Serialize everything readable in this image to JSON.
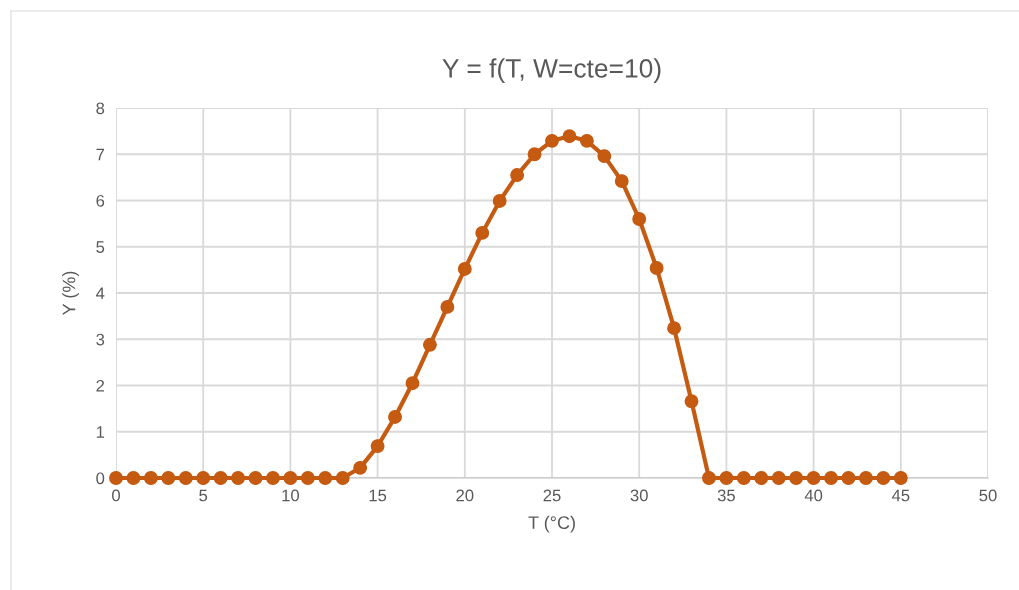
{
  "chart_data": {
    "type": "line",
    "title": "Y = f(T, W=cte=10)",
    "xlabel": "T (°C)",
    "ylabel": "Y (%)",
    "x": [
      0,
      1,
      2,
      3,
      4,
      5,
      6,
      7,
      8,
      9,
      10,
      11,
      12,
      13,
      14,
      15,
      16,
      17,
      18,
      19,
      20,
      21,
      22,
      23,
      24,
      25,
      26,
      27,
      28,
      29,
      30,
      31,
      32,
      33,
      34,
      35,
      36,
      37,
      38,
      39,
      40,
      41,
      42,
      43,
      44,
      45
    ],
    "series": [
      {
        "color": "#c55a11",
        "values": [
          0,
          0,
          0,
          0,
          0,
          0,
          0,
          0,
          0,
          0,
          0,
          0,
          0,
          0,
          0.22,
          0.69,
          1.32,
          2.05,
          2.88,
          3.7,
          4.52,
          5.3,
          5.99,
          6.55,
          7.0,
          7.29,
          7.39,
          7.29,
          6.96,
          6.42,
          5.6,
          4.54,
          3.24,
          1.66,
          0,
          0,
          0,
          0,
          0,
          0,
          0,
          0,
          0,
          0,
          0,
          0
        ]
      }
    ],
    "xlim": [
      0,
      50
    ],
    "xticks": [
      0,
      5,
      10,
      15,
      20,
      25,
      30,
      35,
      40,
      45,
      50
    ],
    "ylim": [
      0,
      8
    ],
    "yticks": [
      0,
      1,
      2,
      3,
      4,
      5,
      6,
      7,
      8
    ],
    "grid": true,
    "marker": "circle",
    "line_style": "solid",
    "legend": false
  }
}
